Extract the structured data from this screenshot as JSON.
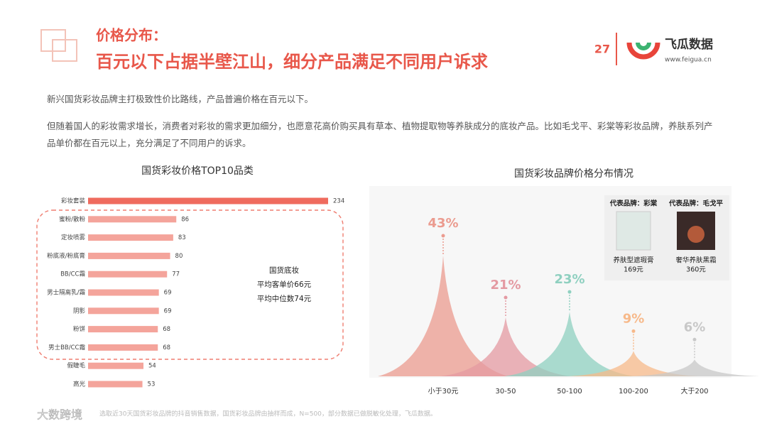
{
  "header": {
    "title": "价格分布：",
    "subtitle": "百元以下占据半壁江山，细分产品满足不同用户诉求",
    "page": "27",
    "logo": "飞瓜数据",
    "url": "www.feigua.cn"
  },
  "paragraphs": [
    "新兴国货彩妆品牌主打极致性价比路线，产品普遍价格在百元以下。",
    "但随着国人的彩妆需求增长，消费者对彩妆的需求更加细分，也愿意花高价购买具有草本、植物提取物等养肤成分的底妆产品。比如毛戈平、彩棠等彩妆品牌，养肤系列产品单价都在百元以上，充分满足了不同用户的诉求。"
  ],
  "chart_data": [
    {
      "type": "bar",
      "orientation": "horizontal",
      "title": "国货彩妆价格TOP10品类",
      "categories": [
        "彩妆套装",
        "蜜粉/散粉",
        "定妆喷雾",
        "粉底液/粉底膏",
        "BB/CC霜",
        "男士隔离乳/霜",
        "阴影",
        "粉饼",
        "男士BB/CC霜",
        "假睫毛",
        "高光"
      ],
      "values": [
        234,
        86,
        83,
        80,
        77,
        69,
        69,
        68,
        68,
        54,
        53
      ],
      "colors": [
        "#ef6b5e",
        "#f4a49b",
        "#f4a49b",
        "#f4a49b",
        "#f4a49b",
        "#f4a49b",
        "#f4a49b",
        "#f4a49b",
        "#f4a49b",
        "#f4a49b",
        "#f4a49b"
      ],
      "annotations": [
        "国货底妆",
        "平均客单价66元",
        "平均中位数74元"
      ]
    },
    {
      "type": "area",
      "title": "国货彩妆品牌价格分布情况",
      "categories": [
        "小于30元",
        "30-50",
        "50-100",
        "100-200",
        "大于200"
      ],
      "values": [
        43,
        21,
        23,
        9,
        6
      ],
      "value_labels": [
        "43%",
        "21%",
        "23%",
        "9%",
        "6%"
      ],
      "colors": [
        "#eb9b8f",
        "#e49aa2",
        "#8fd0c0",
        "#f7b98a",
        "#c8c8c8"
      ],
      "annotations": [
        {
          "brand": "代表品牌：彩棠",
          "product": "养肤型遮瑕膏",
          "price": "169元"
        },
        {
          "brand": "代表品牌：毛戈平",
          "product": "奢华养肤黑霜",
          "price": "360元"
        }
      ]
    }
  ],
  "source": "选取近30天国货彩妆品牌的抖音销售数据，国货彩妆品牌由抽样而成，N=500，部分数据已做脱敏化处理，飞瓜数据。",
  "watermark": "大数跨境"
}
